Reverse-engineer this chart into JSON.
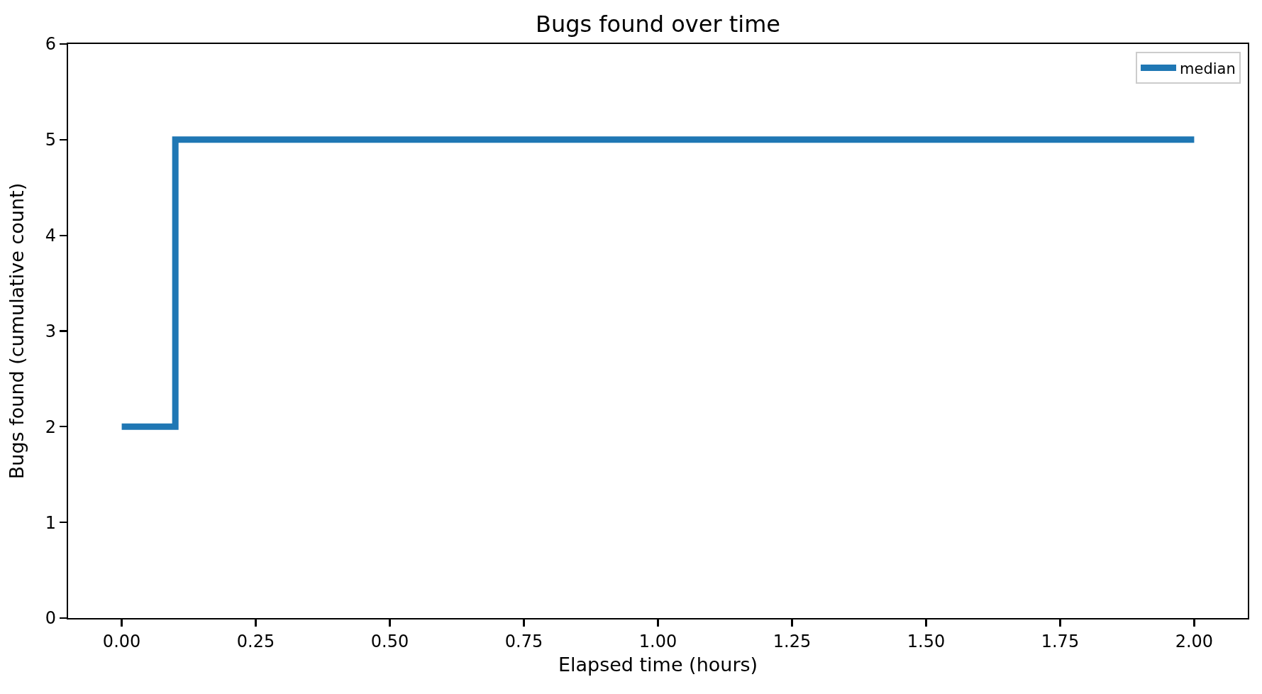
{
  "chart_data": {
    "type": "step",
    "title": "Bugs found over time",
    "xlabel": "Elapsed time (hours)",
    "ylabel": "Bugs found (cumulative count)",
    "x": [
      0,
      0.1,
      2.0
    ],
    "series": [
      {
        "name": "median",
        "color": "#1f77b4",
        "values": [
          2,
          5,
          5
        ]
      }
    ],
    "xlim": [
      -0.1,
      2.1
    ],
    "ylim": [
      0,
      6
    ],
    "xticks": [
      {
        "value": 0,
        "label": "0.00"
      },
      {
        "value": 0.25,
        "label": "0.25"
      },
      {
        "value": 0.5,
        "label": "0.50"
      },
      {
        "value": 0.75,
        "label": "0.75"
      },
      {
        "value": 1,
        "label": "1.00"
      },
      {
        "value": 1.25,
        "label": "1.25"
      },
      {
        "value": 1.5,
        "label": "1.50"
      },
      {
        "value": 1.75,
        "label": "1.75"
      },
      {
        "value": 2,
        "label": "2.00"
      }
    ],
    "yticks": [
      0,
      1,
      2,
      3,
      4,
      5,
      6
    ],
    "grid": false,
    "legend": "top right"
  }
}
